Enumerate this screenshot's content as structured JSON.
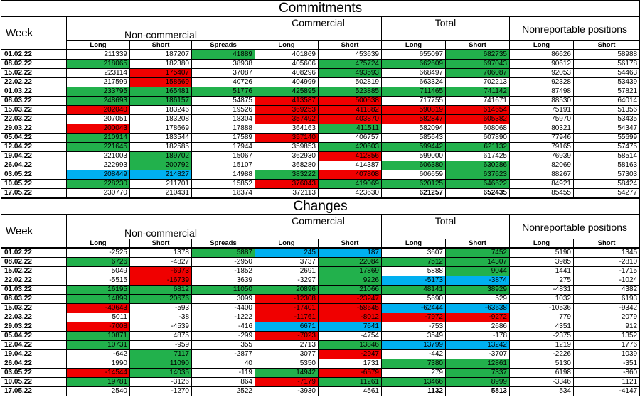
{
  "colors": {
    "green": "#22b14c",
    "red": "#f00000",
    "blue": "#00b0f0"
  },
  "sections": [
    {
      "title": "Commitments",
      "headers": {
        "week": "Week",
        "groups": [
          "Non-commercial",
          "Commercial",
          "Total",
          "Nonreportable positions"
        ],
        "subs": [
          "Long",
          "Short",
          "Spreads",
          "Long",
          "Short",
          "Long",
          "Short",
          "Long",
          "Short"
        ]
      },
      "rows": [
        {
          "week": "01.02.22",
          "cells": [
            "211339",
            "187207",
            "41889",
            "401869",
            "453639",
            "655097",
            "682735",
            "86626",
            "58988"
          ],
          "hl": [
            "",
            "",
            "g",
            "",
            "",
            "",
            "g",
            "",
            ""
          ]
        },
        {
          "week": "08.02.22",
          "cells": [
            "218065",
            "182380",
            "38938",
            "405606",
            "475724",
            "662609",
            "697043",
            "90612",
            "56178"
          ],
          "hl": [
            "g",
            "",
            "",
            "",
            "g",
            "g",
            "g",
            "",
            ""
          ]
        },
        {
          "week": "15.02.22",
          "cells": [
            "223114",
            "175407",
            "37087",
            "408296",
            "493593",
            "668497",
            "706087",
            "92053",
            "54463"
          ],
          "hl": [
            "",
            "r",
            "",
            "",
            "g",
            "",
            "g",
            "",
            ""
          ]
        },
        {
          "week": "22.02.22",
          "cells": [
            "217599",
            "158669",
            "40726",
            "404999",
            "502819",
            "663324",
            "702213",
            "92328",
            "53439"
          ],
          "hl": [
            "",
            "r",
            "",
            "",
            "",
            "",
            "",
            "",
            ""
          ]
        },
        {
          "week": "01.03.22",
          "cells": [
            "233795",
            "165481",
            "51776",
            "425895",
            "523885",
            "711465",
            "741142",
            "87498",
            "57821"
          ],
          "hl": [
            "g",
            "g",
            "g",
            "g",
            "g",
            "g",
            "g",
            "",
            ""
          ]
        },
        {
          "week": "08.03.22",
          "cells": [
            "248693",
            "186157",
            "54875",
            "413587",
            "500638",
            "717755",
            "741671",
            "88530",
            "64014"
          ],
          "hl": [
            "g",
            "g",
            "",
            "r",
            "r",
            "",
            "",
            "",
            ""
          ]
        },
        {
          "week": "15.03.22",
          "cells": [
            "202040",
            "183246",
            "19526",
            "369253",
            "411882",
            "590819",
            "614654",
            "75191",
            "51356"
          ],
          "hl": [
            "r",
            "",
            "",
            "r",
            "r",
            "r",
            "r",
            "",
            ""
          ]
        },
        {
          "week": "22.03.22",
          "cells": [
            "207051",
            "183208",
            "18304",
            "357492",
            "403870",
            "582847",
            "605382",
            "75970",
            "53435"
          ],
          "hl": [
            "",
            "",
            "",
            "r",
            "r",
            "r",
            "r",
            "",
            ""
          ]
        },
        {
          "week": "29.03.22",
          "cells": [
            "200043",
            "178669",
            "17888",
            "364163",
            "411511",
            "582094",
            "608068",
            "80321",
            "54347"
          ],
          "hl": [
            "r",
            "",
            "",
            "",
            "g",
            "",
            "",
            "",
            ""
          ]
        },
        {
          "week": "05.04.22",
          "cells": [
            "210914",
            "183544",
            "17589",
            "357140",
            "406757",
            "585643",
            "607890",
            "77946",
            "55699"
          ],
          "hl": [
            "g",
            "",
            "",
            "r",
            "",
            "",
            "",
            "",
            ""
          ]
        },
        {
          "week": "12.04.22",
          "cells": [
            "221645",
            "182585",
            "17944",
            "359853",
            "420603",
            "599442",
            "621132",
            "79165",
            "57475"
          ],
          "hl": [
            "g",
            "",
            "",
            "",
            "g",
            "g",
            "g",
            "",
            ""
          ]
        },
        {
          "week": "19.04.22",
          "cells": [
            "221003",
            "189702",
            "15067",
            "362930",
            "412856",
            "599000",
            "617425",
            "76939",
            "58514"
          ],
          "hl": [
            "",
            "g",
            "",
            "",
            "r",
            "",
            "",
            "",
            ""
          ]
        },
        {
          "week": "26.04.22",
          "cells": [
            "222993",
            "200792",
            "15107",
            "368280",
            "414387",
            "606380",
            "630286",
            "82069",
            "58163"
          ],
          "hl": [
            "",
            "g",
            "",
            "",
            "",
            "g",
            "g",
            "",
            ""
          ]
        },
        {
          "week": "03.05.22",
          "cells": [
            "208449",
            "214827",
            "14988",
            "383222",
            "407808",
            "606659",
            "637623",
            "88267",
            "57303"
          ],
          "hl": [
            "bl",
            "bl",
            "",
            "g",
            "r",
            "",
            "g",
            "",
            ""
          ]
        },
        {
          "week": "10.05.22",
          "cells": [
            "228230",
            "211701",
            "15852",
            "376043",
            "419069",
            "620125",
            "646622",
            "84921",
            "58424"
          ],
          "hl": [
            "g",
            "",
            "",
            "r",
            "g",
            "g",
            "g",
            "",
            ""
          ]
        },
        {
          "week": "17.05.22",
          "cells": [
            "230770",
            "210431",
            "18374",
            "372113",
            "423630",
            "621257",
            "652435",
            "85455",
            "54277"
          ],
          "hl": [
            "",
            "",
            "",
            "",
            "",
            "",
            "",
            "",
            ""
          ],
          "bold": [
            5,
            6
          ]
        }
      ]
    },
    {
      "title": "Changes",
      "headers": {
        "week": "Week",
        "groups": [
          "Non-commercial",
          "Commercial",
          "Total",
          "Nonreportable positions"
        ],
        "subs": [
          "Long",
          "Short",
          "Spreads",
          "Long",
          "Short",
          "Long",
          "Short",
          "Long",
          "Short"
        ]
      },
      "rows": [
        {
          "week": "01.02.22",
          "cells": [
            "-2525",
            "1378",
            "5887",
            "245",
            "187",
            "3607",
            "7452",
            "5190",
            "1345"
          ],
          "hl": [
            "",
            "",
            "g",
            "bl",
            "bl",
            "",
            "g",
            "",
            ""
          ]
        },
        {
          "week": "08.02.22",
          "cells": [
            "6726",
            "-4827",
            "-2950",
            "3737",
            "22084",
            "7512",
            "14307",
            "3985",
            "-2810"
          ],
          "hl": [
            "g",
            "",
            "",
            "",
            "g",
            "g",
            "g",
            "",
            ""
          ]
        },
        {
          "week": "15.02.22",
          "cells": [
            "5049",
            "-6973",
            "-1852",
            "2691",
            "17869",
            "5888",
            "9044",
            "1441",
            "-1715"
          ],
          "hl": [
            "",
            "r",
            "",
            "",
            "g",
            "",
            "g",
            "",
            ""
          ]
        },
        {
          "week": "22.02.22",
          "cells": [
            "-5515",
            "-16739",
            "3639",
            "-3297",
            "9226",
            "-5173",
            "-3874",
            "275",
            "-1024"
          ],
          "hl": [
            "",
            "r",
            "",
            "",
            "g",
            "bl",
            "bl",
            "",
            ""
          ]
        },
        {
          "week": "01.03.22",
          "cells": [
            "16195",
            "6812",
            "11050",
            "20896",
            "21066",
            "48141",
            "38929",
            "-4831",
            "4382"
          ],
          "hl": [
            "g",
            "g",
            "g",
            "g",
            "g",
            "g",
            "g",
            "",
            ""
          ]
        },
        {
          "week": "08.03.22",
          "cells": [
            "14899",
            "20676",
            "3099",
            "-12308",
            "-23247",
            "5690",
            "529",
            "1032",
            "6193"
          ],
          "hl": [
            "g",
            "g",
            "",
            "r",
            "r",
            "",
            "",
            "",
            ""
          ]
        },
        {
          "week": "15.03.22",
          "cells": [
            "-40643",
            "-593",
            "-4400",
            "-17401",
            "-58645",
            "-62444",
            "-63638",
            "-10536",
            "-9342"
          ],
          "hl": [
            "r",
            "",
            "",
            "r",
            "r",
            "bl",
            "bl",
            "",
            ""
          ]
        },
        {
          "week": "22.03.22",
          "cells": [
            "5011",
            "-38",
            "-1222",
            "-11761",
            "-8012",
            "-7972",
            "-9272",
            "779",
            "2079"
          ],
          "hl": [
            "",
            "",
            "",
            "r",
            "r",
            "r",
            "r",
            "",
            ""
          ]
        },
        {
          "week": "29.03.22",
          "cells": [
            "-7008",
            "-4539",
            "-416",
            "6671",
            "7641",
            "-753",
            "2686",
            "4351",
            "912"
          ],
          "hl": [
            "r",
            "",
            "",
            "bl",
            "bl",
            "",
            "",
            "",
            ""
          ]
        },
        {
          "week": "05.04.22",
          "cells": [
            "10871",
            "4875",
            "-299",
            "-7023",
            "-4754",
            "3549",
            "-178",
            "-2375",
            "1352"
          ],
          "hl": [
            "g",
            "",
            "",
            "r",
            "",
            "",
            "",
            "",
            ""
          ]
        },
        {
          "week": "12.04.22",
          "cells": [
            "10731",
            "-959",
            "355",
            "2713",
            "13846",
            "13799",
            "13242",
            "1219",
            "1776"
          ],
          "hl": [
            "g",
            "",
            "",
            "",
            "g",
            "bl",
            "bl",
            "",
            ""
          ]
        },
        {
          "week": "19.04.22",
          "cells": [
            "-642",
            "7117",
            "-2877",
            "3077",
            "-2947",
            "-442",
            "-3707",
            "-2226",
            "1039"
          ],
          "hl": [
            "",
            "g",
            "",
            "",
            "r",
            "",
            "",
            "",
            ""
          ]
        },
        {
          "week": "26.04.22",
          "cells": [
            "1990",
            "11090",
            "40",
            "5350",
            "1731",
            "7380",
            "12861",
            "5130",
            "-351"
          ],
          "hl": [
            "",
            "g",
            "",
            "",
            "",
            "g",
            "g",
            "",
            ""
          ]
        },
        {
          "week": "03.05.22",
          "cells": [
            "-14544",
            "14035",
            "-119",
            "14942",
            "-6579",
            "279",
            "7337",
            "6198",
            "-860"
          ],
          "hl": [
            "r",
            "g",
            "",
            "g",
            "r",
            "",
            "g",
            "",
            ""
          ]
        },
        {
          "week": "10.05.22",
          "cells": [
            "19781",
            "-3126",
            "864",
            "-7179",
            "11261",
            "13466",
            "8999",
            "-3346",
            "1121"
          ],
          "hl": [
            "g",
            "",
            "",
            "r",
            "g",
            "g",
            "g",
            "",
            ""
          ]
        },
        {
          "week": "17.05.22",
          "cells": [
            "2540",
            "-1270",
            "2522",
            "-3930",
            "4561",
            "1132",
            "5813",
            "534",
            "-4147"
          ],
          "hl": [
            "",
            "",
            "",
            "",
            "",
            "",
            "",
            "",
            ""
          ],
          "bold": [
            5,
            6
          ]
        }
      ]
    }
  ]
}
